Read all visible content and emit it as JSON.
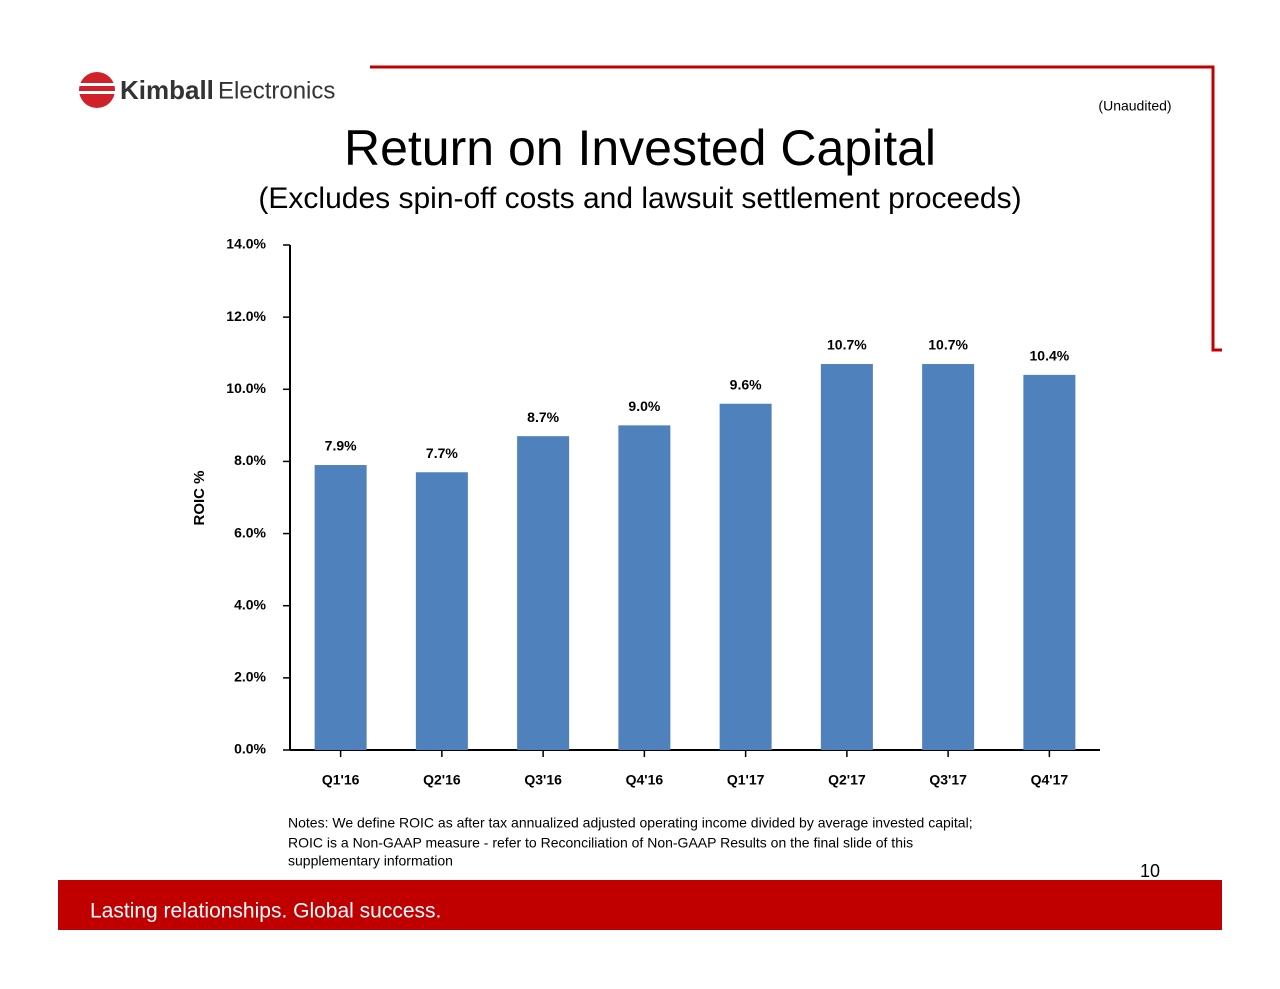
{
  "logo": {
    "name": "Kimball",
    "suffix": "Electronics"
  },
  "header": {
    "note": "(Unaudited)"
  },
  "chart_data": {
    "type": "bar",
    "title": "Return on Invested Capital",
    "subtitle": "(Excludes spin-off costs and lawsuit settlement proceeds)",
    "y_label": "ROIC %",
    "categories": [
      "Q1'16",
      "Q2'16",
      "Q3'16",
      "Q4'16",
      "Q1'17",
      "Q2'17",
      "Q3'17",
      "Q4'17"
    ],
    "values": [
      7.9,
      7.7,
      8.7,
      9.0,
      9.6,
      10.7,
      10.7,
      10.4
    ],
    "value_labels": [
      "7.9%",
      "7.7%",
      "8.7%",
      "9.0%",
      "9.6%",
      "10.7%",
      "10.7%",
      "10.4%"
    ],
    "color": "#4f81bd",
    "ylim": [
      0,
      14
    ],
    "yticks": [
      {
        "value": 0,
        "label": "0.0%"
      },
      {
        "value": 2,
        "label": "2.0%"
      },
      {
        "value": 4,
        "label": "4.0%"
      },
      {
        "value": 6,
        "label": "6.0%"
      },
      {
        "value": 8,
        "label": "8.0%"
      },
      {
        "value": 10,
        "label": "10.0%"
      },
      {
        "value": 12,
        "label": "12.0%"
      },
      {
        "value": 14,
        "label": "14.0%"
      }
    ],
    "grid": false
  },
  "notes": [
    "Notes:  We define ROIC as after tax annualized adjusted operating income divided by average invested capital;",
    "ROIC is a Non-GAAP measure - refer to Reconciliation of Non-GAAP Results on the final slide of this",
    "supplementary information"
  ],
  "page_number": "10",
  "footer": "Lasting relationships. Global success."
}
